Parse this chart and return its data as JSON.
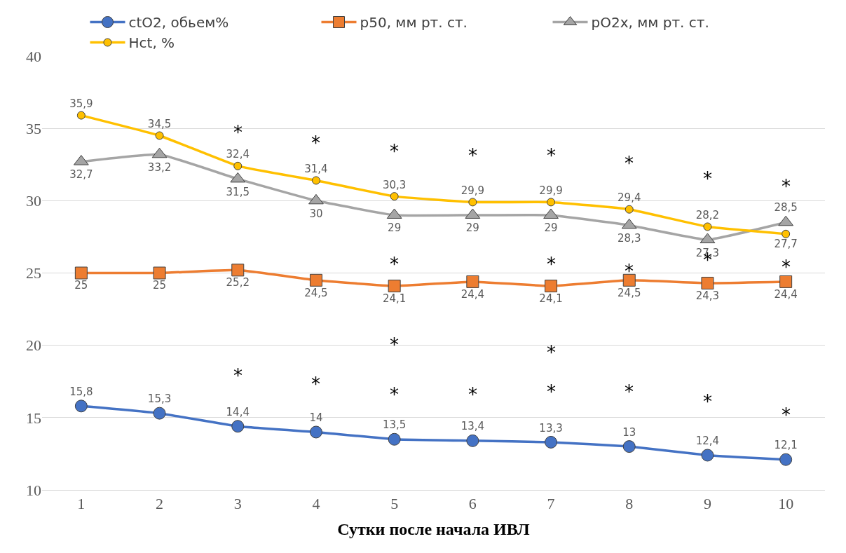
{
  "chart_data": {
    "type": "line",
    "xlabel": "Сутки после начала ИВЛ",
    "categories": [
      "1",
      "2",
      "3",
      "4",
      "5",
      "6",
      "7",
      "8",
      "9",
      "10"
    ],
    "series": [
      {
        "name": "ctO2, обьем%",
        "color": "#4472c4",
        "marker": "circle",
        "values": [
          15.8,
          15.3,
          14.4,
          14,
          13.5,
          13.4,
          13.3,
          13,
          12.4,
          12.1
        ],
        "value_labels": [
          "15,8",
          "15,3",
          "14,4",
          "14",
          "13,5",
          "13,4",
          "13,3",
          "13",
          "12,4",
          "12,1"
        ]
      },
      {
        "name": "p50, мм рт. ст.",
        "color": "#ed7d31",
        "marker": "square",
        "values": [
          25,
          25,
          25.2,
          24.5,
          24.1,
          24.4,
          24.1,
          24.5,
          24.3,
          24.4
        ],
        "value_labels": [
          "25",
          "25",
          "25,2",
          "24,5",
          "24,1",
          "24,4",
          "24,1",
          "24,5",
          "24,3",
          "24,4"
        ]
      },
      {
        "name": "pO2x, мм рт. ст.",
        "color": "#a5a5a5",
        "marker": "triangle",
        "values": [
          32.7,
          33.2,
          31.5,
          30,
          29,
          29,
          29,
          28.3,
          27.3,
          28.5
        ],
        "value_labels": [
          "32,7",
          "33,2",
          "31,5",
          "30",
          "29",
          "29",
          "29",
          "28,3",
          "27,3",
          "28,5"
        ]
      },
      {
        "name": "Hct, %",
        "color": "#ffc000",
        "marker": "circle",
        "values": [
          35.9,
          34.5,
          32.4,
          31.4,
          30.3,
          29.9,
          29.9,
          29.4,
          28.2,
          27.7
        ],
        "value_labels": [
          "35,9",
          "34,5",
          "32,4",
          "31,4",
          "30,3",
          "29,9",
          "29,9",
          "29,4",
          "28,2",
          "27,7"
        ]
      }
    ],
    "ylim": [
      10,
      40
    ],
    "yticks": [
      10,
      15,
      20,
      25,
      30,
      35,
      40
    ],
    "grid": "y",
    "legend": "top",
    "annotations": [
      "*",
      "*",
      "*",
      "*",
      "*",
      "*",
      "*",
      "*",
      "*",
      "*",
      "*",
      "*",
      "*",
      "*",
      "*",
      "*",
      "*",
      "*",
      "*",
      "*",
      "*",
      "*",
      "*"
    ]
  }
}
